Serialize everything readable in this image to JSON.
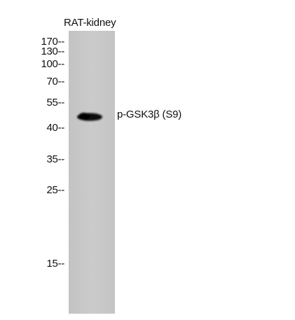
{
  "sample": {
    "label": "RAT-kidney"
  },
  "markers": [
    {
      "value": "170",
      "tick": "--"
    },
    {
      "value": "130",
      "tick": "--"
    },
    {
      "value": "100",
      "tick": "--"
    },
    {
      "value": "70",
      "tick": "--"
    },
    {
      "value": "55",
      "tick": "--"
    },
    {
      "value": "40",
      "tick": "--"
    },
    {
      "value": "35",
      "tick": "--"
    },
    {
      "value": "25",
      "tick": "--"
    },
    {
      "value": "15",
      "tick": "--"
    }
  ],
  "band": {
    "label": "p-GSK3β (S9)"
  },
  "colors": {
    "lane": "#c8c8c8",
    "band": "#0a0a0a",
    "text": "#111111",
    "background": "#ffffff"
  }
}
